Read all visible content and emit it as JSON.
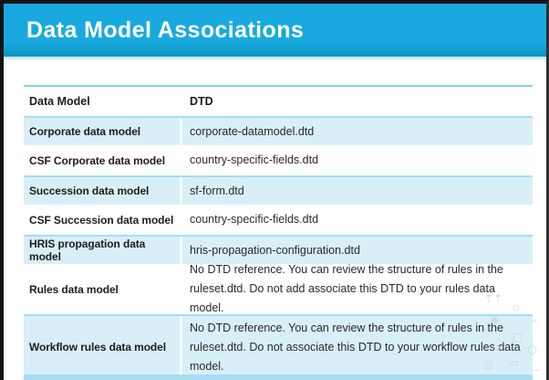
{
  "header": {
    "title": "Data Model Associations"
  },
  "table": {
    "columns": [
      "Data Model",
      "DTD"
    ],
    "rows": [
      {
        "model": "Corporate data model",
        "dtd": "corporate-datamodel.dtd"
      },
      {
        "model": "CSF Corporate data model",
        "dtd": "country-specific-fields.dtd"
      },
      {
        "model": "Succession data model",
        "dtd": "sf-form.dtd"
      },
      {
        "model": "CSF Succession data model",
        "dtd": "country-specific-fields.dtd"
      },
      {
        "model": "HRIS propagation data model",
        "dtd": "hris-propagation-configuration.dtd"
      },
      {
        "model": "Rules data model",
        "dtd": "No DTD reference. You can review the structure of rules in the ruleset.dtd. Do not add associate this DTD to your rules data model."
      },
      {
        "model": "Workflow rules data model",
        "dtd": "No DTD reference. You can review the structure of rules in the ruleset.dtd. Do not associate this DTD to your workflow rules data model."
      }
    ]
  },
  "colors": {
    "header_bar": "#18aade",
    "row_highlight": "#d9eff8",
    "row_top_edge": "#a6ddf2",
    "table_top_rule": "#84cfee",
    "text": "#1d1d1d"
  },
  "watermark": {
    "glyphs": [
      "⇡⇡",
      "✩",
      "❋",
      "→",
      "▢",
      "✕",
      "◎",
      "▭",
      "⬡",
      "→"
    ]
  }
}
